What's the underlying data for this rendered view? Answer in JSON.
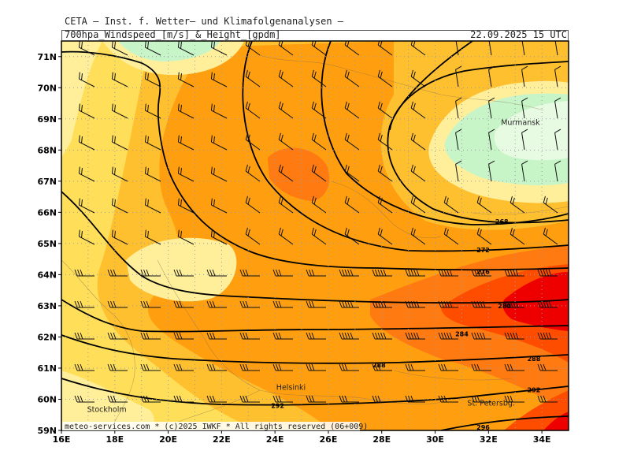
{
  "header": {
    "title": "CETA — Inst. f. Wetter— und Klimafolgenanalysen —",
    "subtitle": "700hpa_Windspeed_[m/s]_&_Height_[gpdm]",
    "valid_time": "22.09.2025 15 UTC"
  },
  "footer": {
    "credit": "meteo-services.com * (c)2025 IWKF * All rights reserved (06+009)"
  },
  "axes": {
    "lat_labels": [
      "59N",
      "60N",
      "61N",
      "62N",
      "63N",
      "64N",
      "65N",
      "66N",
      "67N",
      "68N",
      "69N",
      "70N",
      "71N"
    ],
    "lon_labels": [
      "16E",
      "18E",
      "20E",
      "22E",
      "24E",
      "26E",
      "28E",
      "30E",
      "32E",
      "34E"
    ]
  },
  "places": [
    {
      "name": "Murmansk",
      "lon": 33.2,
      "lat": 68.8
    },
    {
      "name": "Helsinki",
      "lon": 24.6,
      "lat": 60.3
    },
    {
      "name": "Stockholm",
      "lon": 17.7,
      "lat": 59.6
    },
    {
      "name": "St. Petersbg.",
      "lon": 32.1,
      "lat": 59.8
    }
  ],
  "contour_labels": [
    {
      "text": "268",
      "lon": 32.5,
      "lat": 65.7
    },
    {
      "text": "272",
      "lon": 31.8,
      "lat": 64.8
    },
    {
      "text": "276",
      "lon": 31.8,
      "lat": 64.1
    },
    {
      "text": "280",
      "lon": 32.6,
      "lat": 63.0
    },
    {
      "text": "284",
      "lon": 31.0,
      "lat": 62.1
    },
    {
      "text": "288",
      "lon": 33.7,
      "lat": 61.3
    },
    {
      "text": "288",
      "lon": 27.9,
      "lat": 61.1
    },
    {
      "text": "292",
      "lon": 33.7,
      "lat": 60.3
    },
    {
      "text": "292",
      "lon": 24.1,
      "lat": 59.8
    },
    {
      "text": "296",
      "lon": 31.8,
      "lat": 59.1
    }
  ],
  "colors": {
    "wind_low": "#c8f5c8",
    "wind_pale": "#ffef9a",
    "wind_yellow": "#ffdf5a",
    "wind_gold": "#ffc030",
    "wind_orange": "#ff9f10",
    "wind_dark_orange": "#ff7a10",
    "wind_red": "#ff4d00",
    "wind_max": "#ee0000",
    "contour": "#000000"
  }
}
